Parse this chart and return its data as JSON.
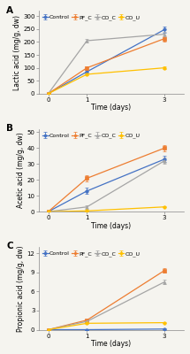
{
  "panels": [
    {
      "label": "A",
      "ylabel": "Lactic acid (mg/g, dw)",
      "ylim": [
        0,
        320
      ],
      "yticks": [
        0,
        50,
        100,
        150,
        200,
        250,
        300
      ],
      "series": {
        "Control": {
          "x": [
            0,
            1,
            3
          ],
          "y": [
            0,
            85,
            248
          ],
          "err": [
            0,
            8,
            12
          ],
          "color": "#4472C4",
          "marker": "o"
        },
        "PF_C": {
          "x": [
            0,
            1,
            3
          ],
          "y": [
            0,
            100,
            213
          ],
          "err": [
            0,
            7,
            10
          ],
          "color": "#ED7D31",
          "marker": "s"
        },
        "CO_C": {
          "x": [
            0,
            1,
            3
          ],
          "y": [
            0,
            205,
            230
          ],
          "err": [
            0,
            8,
            10
          ],
          "color": "#A5A5A5",
          "marker": "^"
        },
        "CO_U": {
          "x": [
            0,
            1,
            3
          ],
          "y": [
            0,
            75,
            100
          ],
          "err": [
            0,
            5,
            5
          ],
          "color": "#FFC000",
          "marker": "o"
        }
      }
    },
    {
      "label": "B",
      "ylabel": "Acetic acid (mg/g, dw)",
      "ylim": [
        0,
        52
      ],
      "yticks": [
        0,
        10,
        20,
        30,
        40,
        50
      ],
      "series": {
        "Control": {
          "x": [
            0,
            1,
            3
          ],
          "y": [
            0,
            13,
            33
          ],
          "err": [
            0,
            2,
            2
          ],
          "color": "#4472C4",
          "marker": "o"
        },
        "PF_C": {
          "x": [
            0,
            1,
            3
          ],
          "y": [
            0,
            21,
            40
          ],
          "err": [
            0,
            2,
            2
          ],
          "color": "#ED7D31",
          "marker": "s"
        },
        "CO_C": {
          "x": [
            0,
            1,
            3
          ],
          "y": [
            0,
            3,
            32
          ],
          "err": [
            0,
            1,
            2
          ],
          "color": "#A5A5A5",
          "marker": "^"
        },
        "CO_U": {
          "x": [
            0,
            1,
            3
          ],
          "y": [
            0,
            0.5,
            3
          ],
          "err": [
            0,
            0.2,
            0.3
          ],
          "color": "#FFC000",
          "marker": "o"
        }
      }
    },
    {
      "label": "C",
      "ylabel": "Propionic acid (mg/g, dw)",
      "ylim": [
        0,
        13
      ],
      "yticks": [
        0,
        3,
        6,
        9,
        12
      ],
      "series": {
        "Control": {
          "x": [
            0,
            1,
            3
          ],
          "y": [
            0,
            0,
            0.1
          ],
          "err": [
            0,
            0,
            0.05
          ],
          "color": "#4472C4",
          "marker": "o"
        },
        "PF_C": {
          "x": [
            0,
            1,
            3
          ],
          "y": [
            0,
            1.5,
            9.3
          ],
          "err": [
            0,
            0.1,
            0.3
          ],
          "color": "#ED7D31",
          "marker": "s"
        },
        "CO_C": {
          "x": [
            0,
            1,
            3
          ],
          "y": [
            0,
            1.3,
            7.5
          ],
          "err": [
            0,
            0.1,
            0.3
          ],
          "color": "#A5A5A5",
          "marker": "^"
        },
        "CO_U": {
          "x": [
            0,
            1,
            3
          ],
          "y": [
            0,
            1.0,
            1.1
          ],
          "err": [
            0,
            0.1,
            0.1
          ],
          "color": "#FFC000",
          "marker": "o"
        }
      }
    }
  ],
  "legend_order": [
    "Control",
    "PF_C",
    "CO_C",
    "CO_U"
  ],
  "xlabel": "Time (days)",
  "xticks": [
    0,
    1,
    3
  ],
  "fig_bg": "#F5F4EF",
  "plot_bg": "#F5F4EF",
  "fontsize_axis_label": 5.5,
  "fontsize_tick": 5.0,
  "fontsize_legend": 4.5,
  "fontsize_panel_label": 7.5,
  "linewidth": 0.9,
  "markersize": 2.5,
  "capsize": 1.5,
  "elinewidth": 0.6,
  "spine_color": "#888888",
  "spine_lw": 0.5
}
